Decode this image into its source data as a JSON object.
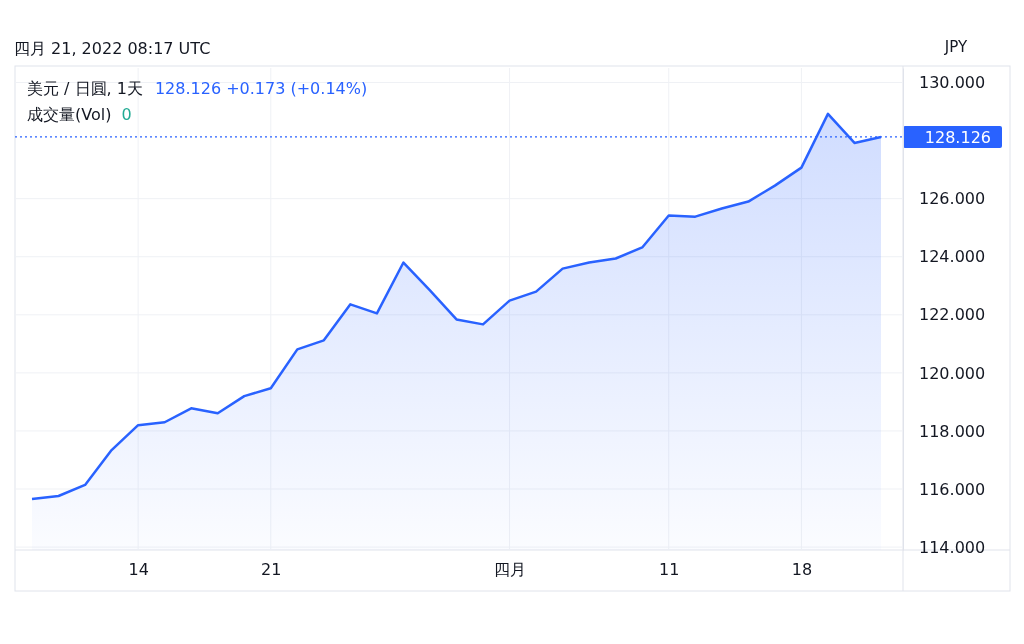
{
  "chart_data": {
    "type": "area",
    "title": "美元 / 日圓, 1天",
    "ylabel": "JPY",
    "annotations": [
      "四月 21, 2022 08:17 UTC",
      "128.126  +0.173 (+0.14%)",
      "成交量(Vol)",
      "0"
    ],
    "categories": [
      null,
      null,
      null,
      null,
      "14",
      null,
      null,
      null,
      null,
      "21",
      null,
      null,
      null,
      null,
      null,
      null,
      null,
      null,
      "四月",
      null,
      null,
      null,
      null,
      null,
      "11",
      null,
      null,
      null,
      null,
      "18",
      null,
      null,
      null
    ],
    "series": [
      {
        "color": "#2962ff",
        "values": [
          115.66,
          115.76,
          116.14,
          117.34,
          118.2,
          118.3,
          118.78,
          118.61,
          119.2,
          119.47,
          120.81,
          121.12,
          122.36,
          122.05,
          123.8,
          122.84,
          121.84,
          121.67,
          122.49,
          122.8,
          123.59,
          123.8,
          123.94,
          124.32,
          125.42,
          125.38,
          125.66,
          125.9,
          126.45,
          127.07,
          128.92,
          127.92,
          128.126
        ]
      }
    ],
    "ylim": [
      113.9,
      130.5
    ],
    "yticks": [
      {
        "value": 114,
        "label": "114.000"
      },
      {
        "value": 116,
        "label": "116.000"
      },
      {
        "value": 118,
        "label": "118.000"
      },
      {
        "value": 120,
        "label": "120.000"
      },
      {
        "value": 122,
        "label": "122.000"
      },
      {
        "value": 124,
        "label": "124.000"
      },
      {
        "value": 126,
        "label": "126.000"
      },
      {
        "value": 130,
        "label": "130.000"
      }
    ],
    "grid": true,
    "ref_lines": [
      {
        "axis": "y",
        "value": 128.126,
        "label": "128.126",
        "color": "#2962ff",
        "line_style": "dotted"
      }
    ]
  }
}
